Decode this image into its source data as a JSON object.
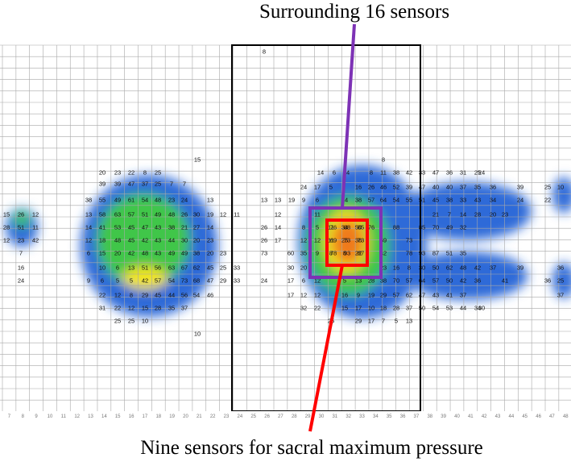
{
  "annotations": {
    "top_label": "Surrounding 16 sensors",
    "bottom_label": "Nine sensors for sacral maximum pressure"
  },
  "colors": {
    "grid_line": "#a8a8a8",
    "frame": "#000000",
    "surrounding_box": "#7d32b5",
    "sacral_box": "#ff0000",
    "pointer_top": "#7d32b5",
    "pointer_bottom": "#ff0000",
    "blob_low": "#2f6bd8",
    "blob_mid": "#3fc64a",
    "blob_high": "#f2e51a",
    "blob_peak": "#ef7a1f"
  },
  "grid": {
    "axis_labels": [
      "7",
      "8",
      "9",
      "10",
      "11",
      "12",
      "13",
      "14",
      "15",
      "16",
      "17",
      "18",
      "19",
      "20",
      "21",
      "22",
      "23",
      "24",
      "25",
      "26",
      "27",
      "28",
      "29",
      "30",
      "31",
      "32",
      "33",
      "34",
      "35",
      "36",
      "37",
      "38",
      "39",
      "40",
      "41",
      "42",
      "43",
      "44",
      "45",
      "46",
      "47",
      "48"
    ]
  },
  "pressure_map": {
    "sacral_sensor_values": [
      [
        76,
        88,
        85
      ],
      [
        69,
        73,
        73
      ],
      [
        78,
        93,
        87
      ]
    ],
    "visible_readings": [
      "8",
      "15",
      "8",
      "20",
      "23",
      "22",
      "8",
      "25",
      "39",
      "39",
      "47",
      "37",
      "25",
      "7",
      "7",
      "38",
      "55",
      "49",
      "61",
      "54",
      "48",
      "23",
      "24",
      "13",
      "15",
      "26",
      "12",
      "13",
      "58",
      "63",
      "57",
      "51",
      "49",
      "48",
      "26",
      "30",
      "19",
      "12",
      "11",
      "28",
      "51",
      "11",
      "14",
      "41",
      "53",
      "45",
      "47",
      "43",
      "38",
      "21",
      "27",
      "14",
      "12",
      "23",
      "42",
      "12",
      "18",
      "48",
      "45",
      "42",
      "43",
      "44",
      "30",
      "20",
      "23",
      "7",
      "6",
      "15",
      "20",
      "42",
      "48",
      "43",
      "49",
      "49",
      "38",
      "20",
      "23",
      "16",
      "10",
      "6",
      "13",
      "51",
      "56",
      "63",
      "67",
      "62",
      "45",
      "25",
      "33",
      "24",
      "9",
      "6",
      "5",
      "5",
      "42",
      "57",
      "54",
      "73",
      "68",
      "47",
      "29",
      "33",
      "22",
      "12",
      "8",
      "29",
      "45",
      "44",
      "56",
      "54",
      "46",
      "31",
      "22",
      "12",
      "15",
      "28",
      "35",
      "37",
      "25",
      "25",
      "10",
      "10",
      "14",
      "6",
      "14",
      "8",
      "11",
      "38",
      "42",
      "33",
      "47",
      "36",
      "31",
      "25",
      "24",
      "24",
      "17",
      "5",
      "16",
      "26",
      "46",
      "52",
      "39",
      "47",
      "40",
      "40",
      "37",
      "35",
      "36",
      "39",
      "25",
      "10",
      "13",
      "13",
      "19",
      "9",
      "6",
      "14",
      "38",
      "57",
      "64",
      "54",
      "55",
      "51",
      "45",
      "38",
      "33",
      "43",
      "34",
      "24",
      "22",
      "12",
      "11",
      "21",
      "7",
      "14",
      "28",
      "20",
      "23",
      "26",
      "14",
      "8",
      "5",
      "11",
      "34",
      "50",
      "76",
      "88",
      "85",
      "70",
      "49",
      "32",
      "26",
      "17",
      "12",
      "12",
      "11",
      "25",
      "36",
      "69",
      "73",
      "73",
      "60",
      "35",
      "9",
      "8",
      "8",
      "22",
      "42",
      "78",
      "93",
      "87",
      "51",
      "35",
      "30",
      "20",
      "23",
      "16",
      "8",
      "30",
      "50",
      "62",
      "48",
      "42",
      "37",
      "39",
      "36",
      "24",
      "17",
      "6",
      "12",
      "5",
      "13",
      "28",
      "38",
      "70",
      "57",
      "64",
      "57",
      "50",
      "42",
      "36",
      "41",
      "36",
      "25",
      "17",
      "12",
      "12",
      "16",
      "9",
      "19",
      "29",
      "57",
      "62",
      "47",
      "43",
      "41",
      "37",
      "37",
      "32",
      "22",
      "15",
      "17",
      "10",
      "18",
      "28",
      "37",
      "50",
      "54",
      "53",
      "44",
      "34",
      "30",
      "25",
      "29",
      "17",
      "7",
      "5",
      "13",
      "19",
      "25",
      "18",
      "10"
    ]
  }
}
